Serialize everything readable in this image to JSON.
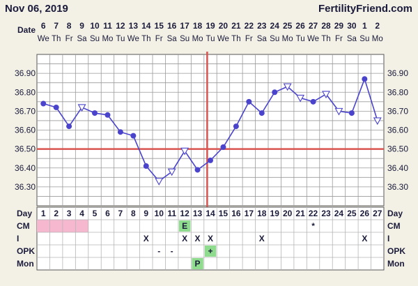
{
  "header": {
    "date": "Nov 06, 2019",
    "brand": "FertilityFriend.com"
  },
  "colors": {
    "line": "#4a44cc",
    "coverline": "#d9534f",
    "grid": "#9a9a9a",
    "cm_fertile": "#f5b8cf",
    "marker_green": "#8fdc8f",
    "background": "#f3f1e6",
    "plot_bg": "#ffffff"
  },
  "labels": {
    "date_row": "Date",
    "day_row": "Day",
    "cm": "CM",
    "i": "I",
    "opk": "OPK",
    "mon": "Mon"
  },
  "chart_data": {
    "type": "line",
    "title": "",
    "xlabel": "Day",
    "ylabel": "",
    "ylim": [
      36.2,
      37.0
    ],
    "y_ticks": [
      "36.90",
      "36.80",
      "36.70",
      "36.60",
      "36.50",
      "36.40",
      "36.30"
    ],
    "y_tick_values": [
      36.9,
      36.8,
      36.7,
      36.6,
      36.5,
      36.4,
      36.3
    ],
    "days": [
      1,
      2,
      3,
      4,
      5,
      6,
      7,
      8,
      9,
      10,
      11,
      12,
      13,
      14,
      15,
      16,
      17,
      18,
      19,
      20,
      21,
      22,
      23,
      24,
      25,
      26,
      27
    ],
    "dates": [
      "6",
      "7",
      "8",
      "9",
      "10",
      "11",
      "12",
      "13",
      "14",
      "15",
      "16",
      "17",
      "18",
      "19",
      "20",
      "21",
      "22",
      "23",
      "24",
      "25",
      "26",
      "27",
      "28",
      "29",
      "30",
      "1",
      "2"
    ],
    "weekdays": [
      "We",
      "Th",
      "Fr",
      "Sa",
      "Su",
      "Mo",
      "Tu",
      "We",
      "Th",
      "Fr",
      "Sa",
      "Su",
      "Mo",
      "Tu",
      "We",
      "Th",
      "Fr",
      "Sa",
      "Su",
      "Mo",
      "Tu",
      "We",
      "Th",
      "Fr",
      "Sa",
      "Su",
      "Mo"
    ],
    "temps": [
      36.74,
      36.72,
      36.62,
      36.72,
      36.69,
      36.68,
      36.59,
      36.57,
      36.41,
      36.33,
      36.38,
      36.49,
      36.39,
      36.44,
      36.51,
      36.62,
      36.75,
      36.69,
      36.8,
      36.83,
      36.77,
      36.75,
      36.79,
      36.7,
      36.69,
      36.87,
      36.65
    ],
    "open_points": [
      4,
      10,
      11,
      12,
      20,
      21,
      23,
      24,
      27
    ],
    "coverline": 36.5,
    "ovulation_day": 14,
    "grid": true,
    "rows": {
      "cm": {
        "fertile_days": [
          1,
          2,
          3,
          4
        ],
        "marks": [
          {
            "day": 12,
            "text": "E",
            "highlight": true
          },
          {
            "day": 22,
            "text": "*",
            "highlight": false
          }
        ]
      },
      "i": {
        "marks": [
          {
            "day": 9,
            "text": "X"
          },
          {
            "day": 12,
            "text": "X"
          },
          {
            "day": 13,
            "text": "X"
          },
          {
            "day": 14,
            "text": "X"
          },
          {
            "day": 18,
            "text": "X"
          },
          {
            "day": 26,
            "text": "X"
          }
        ]
      },
      "opk": {
        "marks": [
          {
            "day": 10,
            "text": "-",
            "highlight": false
          },
          {
            "day": 11,
            "text": "-",
            "highlight": false
          },
          {
            "day": 14,
            "text": "+",
            "highlight": true
          }
        ]
      },
      "mon": {
        "marks": [
          {
            "day": 13,
            "text": "P",
            "highlight": true
          }
        ]
      }
    }
  }
}
